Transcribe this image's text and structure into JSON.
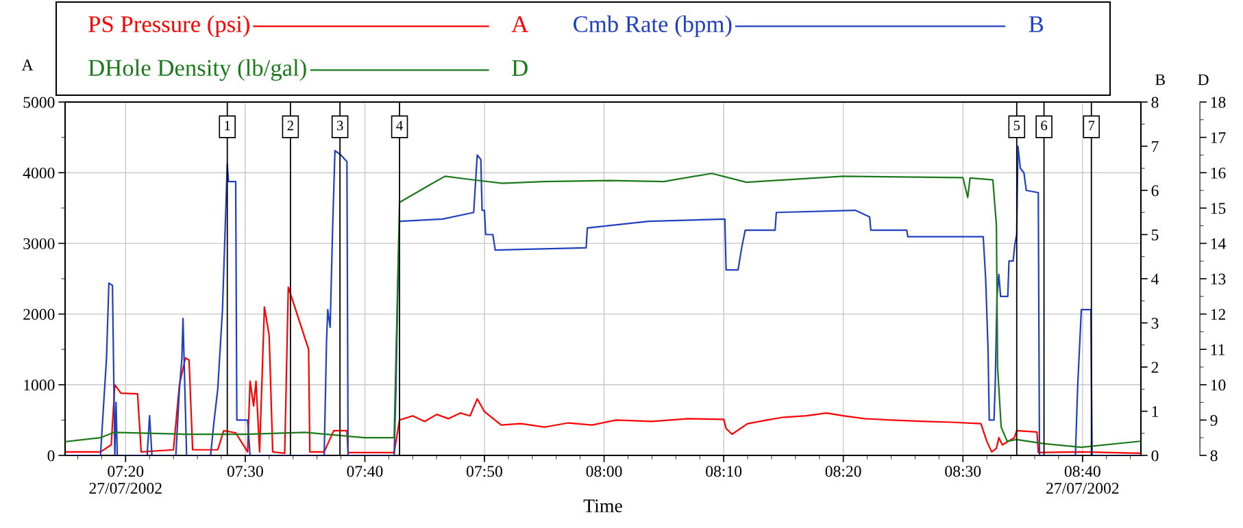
{
  "chart_data": {
    "type": "line",
    "xlabel": "Time",
    "ylabel": "A",
    "y2label": "B",
    "y3label": "D",
    "xlim": [
      7.249,
      8.748
    ],
    "xticks": [
      {
        "value": 7.3333,
        "label": "07:20\n27/07/2002"
      },
      {
        "value": 7.5,
        "label": "07:30"
      },
      {
        "value": 7.6667,
        "label": "07:40"
      },
      {
        "value": 7.8333,
        "label": "07:50"
      },
      {
        "value": 8.0,
        "label": "08:00"
      },
      {
        "value": 8.1667,
        "label": "08:10"
      },
      {
        "value": 8.3333,
        "label": "08:20"
      },
      {
        "value": 8.5,
        "label": "08:30"
      },
      {
        "value": 8.6667,
        "label": "08:40\n27/07/2002"
      }
    ],
    "ylim": [
      0,
      5000
    ],
    "yticks": [
      0,
      1000,
      2000,
      3000,
      4000,
      5000
    ],
    "y2lim": [
      0,
      8
    ],
    "y2ticks": [
      0,
      1,
      2,
      3,
      4,
      5,
      6,
      7,
      8
    ],
    "y3lim": [
      8,
      18
    ],
    "y3ticks": [
      8,
      9,
      10,
      11,
      12,
      13,
      14,
      15,
      16,
      17,
      18
    ],
    "grid": true,
    "legend": "top",
    "marker": "none",
    "line_style": "solid",
    "series": [
      {
        "name": "PS Pressure (psi)",
        "color": "#ff0000",
        "axis": "y",
        "x": [
          7.25,
          7.2983,
          7.3133,
          7.3183,
          7.3267,
          7.35,
          7.355,
          7.4,
          7.4083,
          7.4167,
          7.4217,
          7.4267,
          7.4617,
          7.47,
          7.4867,
          7.5033,
          7.5067,
          7.5117,
          7.515,
          7.52,
          7.5267,
          7.53,
          7.5333,
          7.5383,
          7.555,
          7.56,
          7.5883,
          7.59,
          7.61,
          7.6233,
          7.6417,
          7.6433,
          7.7075,
          7.715,
          7.7333,
          7.75,
          7.7667,
          7.7833,
          7.8,
          7.8133,
          7.8233,
          7.8333,
          7.8567,
          7.8833,
          7.9167,
          7.95,
          7.9833,
          8.0167,
          8.0667,
          8.1167,
          8.1667,
          8.17,
          8.1783,
          8.2,
          8.2267,
          8.25,
          8.2817,
          8.31,
          8.3333,
          8.3633,
          8.4,
          8.4467,
          8.4833,
          8.525,
          8.5333,
          8.54,
          8.5467,
          8.55,
          8.555,
          8.5717,
          8.575,
          8.6033,
          8.605,
          8.665,
          8.7467
        ],
        "values": [
          50,
          50,
          150,
          1000,
          880,
          870,
          50,
          80,
          1000,
          1380,
          1350,
          80,
          80,
          350,
          320,
          50,
          1050,
          700,
          1050,
          50,
          2100,
          1900,
          1700,
          50,
          30,
          2380,
          1500,
          50,
          50,
          350,
          350,
          40,
          40,
          500,
          560,
          480,
          580,
          520,
          600,
          560,
          800,
          620,
          430,
          450,
          400,
          460,
          430,
          500,
          480,
          520,
          510,
          380,
          300,
          450,
          500,
          540,
          560,
          600,
          560,
          520,
          500,
          480,
          470,
          450,
          200,
          50,
          100,
          250,
          150,
          250,
          350,
          330,
          40,
          50,
          30
        ]
      },
      {
        "name": "Cmb Rate (bpm)",
        "color": "#2140c0",
        "axis": "y2",
        "x": [
          7.25,
          7.2983,
          7.3017,
          7.3067,
          7.31,
          7.315,
          7.3183,
          7.32,
          7.3217,
          7.3633,
          7.3667,
          7.37,
          7.4033,
          7.4083,
          7.4117,
          7.4133,
          7.4167,
          7.4183,
          7.4517,
          7.4567,
          7.4617,
          7.4683,
          7.475,
          7.4767,
          7.4867,
          7.4883,
          7.5033,
          7.5067,
          7.61,
          7.6133,
          7.615,
          7.6183,
          7.6217,
          7.625,
          7.6333,
          7.6417,
          7.6433,
          7.7075,
          7.71,
          7.7125,
          7.715,
          7.775,
          7.8183,
          7.8233,
          7.8283,
          7.83,
          7.8333,
          7.835,
          7.845,
          7.8483,
          7.975,
          7.9767,
          8.0625,
          8.1683,
          8.17,
          8.1867,
          8.1917,
          8.1967,
          8.2383,
          8.24,
          8.35,
          8.37,
          8.3717,
          8.4217,
          8.4233,
          8.5283,
          8.5317,
          8.535,
          8.5367,
          8.5433,
          8.545,
          8.5475,
          8.55,
          8.5525,
          8.5625,
          8.5642,
          8.57,
          8.5725,
          8.575,
          8.5767,
          8.58,
          8.585,
          8.5883,
          8.605,
          8.6067,
          8.6567,
          8.66,
          8.665,
          8.6783,
          8.68,
          8.7467
        ],
        "values": [
          0,
          0,
          0.9,
          2.2,
          3.9,
          3.85,
          0,
          1.2,
          0,
          0,
          0.9,
          0,
          0,
          1.5,
          2.2,
          3.1,
          1.0,
          0,
          0,
          0.8,
          1.5,
          3.3,
          6.6,
          6.2,
          6.2,
          0.8,
          0.8,
          0,
          0,
          2.6,
          3.3,
          2.9,
          5.1,
          6.9,
          6.8,
          6.65,
          0,
          0,
          1.5,
          3.7,
          5.3,
          5.35,
          5.5,
          6.8,
          6.7,
          5.55,
          5.55,
          5.0,
          5.0,
          4.65,
          4.7,
          5.15,
          5.3,
          5.35,
          4.2,
          4.2,
          4.7,
          5.1,
          5.1,
          5.5,
          5.55,
          5.4,
          5.1,
          5.1,
          4.95,
          4.95,
          4.0,
          2.4,
          0.8,
          0.8,
          1.6,
          3.6,
          4.1,
          3.6,
          3.6,
          4.4,
          4.4,
          4.8,
          5.0,
          7.0,
          6.5,
          6.4,
          6.0,
          5.95,
          0,
          0,
          1.6,
          3.3,
          3.3,
          0,
          0
        ]
      },
      {
        "name": "DHole Density (lb/gal)",
        "color": "#1a7a1a",
        "axis": "y3",
        "x": [
          7.25,
          7.2983,
          7.3167,
          7.4167,
          7.5,
          7.5833,
          7.6667,
          7.7075,
          7.715,
          7.7583,
          7.7783,
          7.8167,
          7.8583,
          7.9167,
          8.0083,
          8.0833,
          8.15,
          8.1983,
          8.3333,
          8.5,
          8.5067,
          8.51,
          8.5417,
          8.5467,
          8.5483,
          8.5533,
          8.5617,
          8.575,
          8.61,
          8.665,
          8.7467
        ],
        "values": [
          8.39,
          8.5,
          8.65,
          8.6,
          8.6,
          8.65,
          8.5,
          8.5,
          15.16,
          15.67,
          15.9,
          15.8,
          15.7,
          15.75,
          15.78,
          15.75,
          15.98,
          15.73,
          15.9,
          15.86,
          15.3,
          15.85,
          15.8,
          14.5,
          10.5,
          8.8,
          8.4,
          8.45,
          8.34,
          8.23,
          8.4
        ]
      }
    ],
    "ref_lines": [
      {
        "axis": "x",
        "value": 7.475,
        "color": "#000000"
      },
      {
        "axis": "x",
        "value": 7.563,
        "color": "#000000"
      },
      {
        "axis": "x",
        "value": 7.632,
        "color": "#000000"
      },
      {
        "axis": "x",
        "value": 7.715,
        "color": "#000000"
      },
      {
        "axis": "x",
        "value": 8.575,
        "color": "#000000"
      },
      {
        "axis": "x",
        "value": 8.613,
        "color": "#000000"
      },
      {
        "axis": "x",
        "value": 8.679,
        "color": "#000000"
      }
    ],
    "annotations": [
      {
        "text": "1",
        "x": 7.475,
        "y": 4650
      },
      {
        "text": "2",
        "x": 7.563,
        "y": 4650
      },
      {
        "text": "3",
        "x": 7.632,
        "y": 4650
      },
      {
        "text": "4",
        "x": 7.715,
        "y": 4650
      },
      {
        "text": "5",
        "x": 8.575,
        "y": 4650
      },
      {
        "text": "6",
        "x": 8.613,
        "y": 4650
      },
      {
        "text": "7",
        "x": 8.679,
        "y": 4650
      }
    ]
  }
}
